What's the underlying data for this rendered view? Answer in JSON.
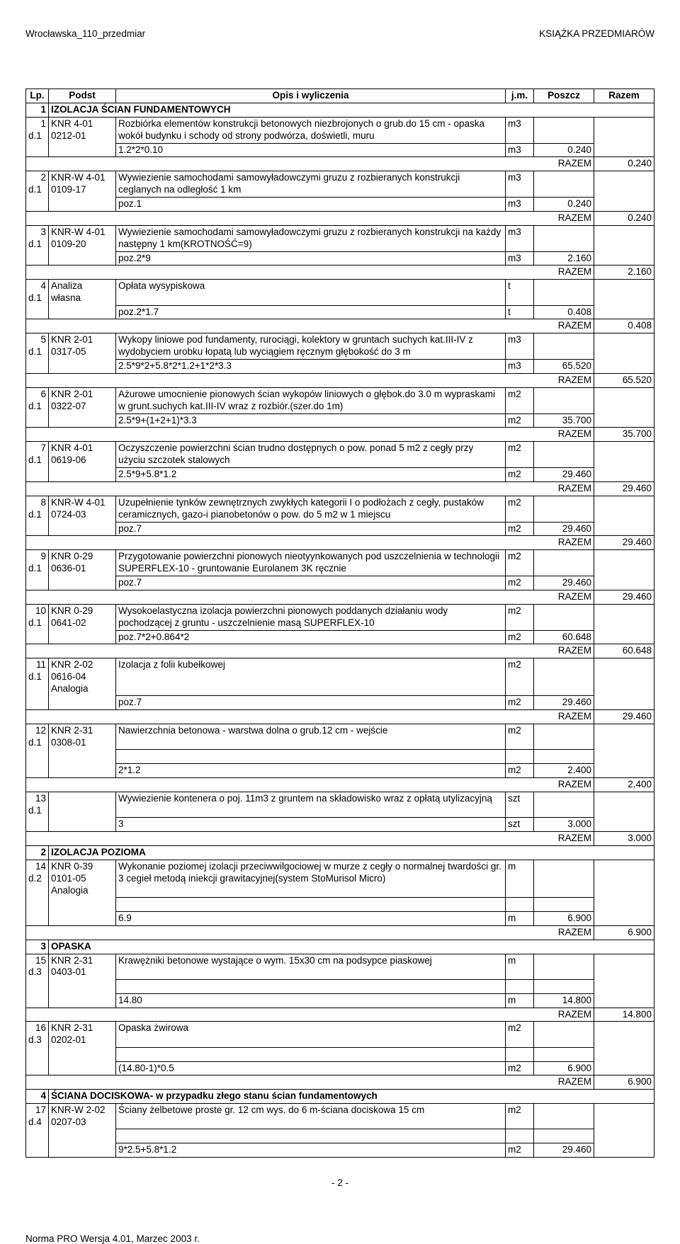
{
  "header": {
    "left": "Wrocławska_110_przedmiar",
    "right": "KSIĄŻKA PRZEDMIARÓW"
  },
  "columns": {
    "lp": "Lp.",
    "podst": "Podst",
    "opis": "Opis i wyliczenia",
    "jm": "j.m.",
    "poszcz": "Poszcz",
    "razem": "Razem"
  },
  "sections": [
    {
      "no": "1",
      "title": "IZOLACJA ŚCIAN FUNDAMENTOWYCH",
      "items": [
        {
          "lp": "1",
          "dz": "d.1",
          "code": "KNR 4-01 0212-01",
          "desc": "Rozbiórka elementów konstrukcji betonowych niezbrojonych o grub.do 15 cm - opaska wokół budynku i schody od strony podwórza, doświetli, muru",
          "jm": "m3",
          "lines": [
            {
              "expr": "1.2*2*0.10",
              "jm": "m3",
              "val": "0.240"
            }
          ],
          "razem": "0.240"
        },
        {
          "lp": "2",
          "dz": "d.1",
          "code": "KNR-W 4-01 0109-17",
          "desc": "Wywiezienie samochodami samowyładowczymi gruzu z rozbieranych konstrukcji ceglanych na odległość 1 km",
          "jm": "m3",
          "lines": [
            {
              "expr": "poz.1",
              "jm": "m3",
              "val": "0.240"
            }
          ],
          "razem": "0.240"
        },
        {
          "lp": "3",
          "dz": "d.1",
          "code": "KNR-W 4-01 0109-20",
          "desc": "Wywiezienie samochodami samowyładowczymi gruzu z rozbieranych konstrukcji na każdy następny 1 km(KROTNOŚĆ=9)",
          "jm": "m3",
          "lines": [
            {
              "expr": "poz.2*9",
              "jm": "m3",
              "val": "2.160"
            }
          ],
          "razem": "2.160"
        },
        {
          "lp": "4",
          "dz": "d.1",
          "code": "Analiza własna",
          "desc": "Opłata wysypiskowa",
          "jm": "t",
          "lines": [
            {
              "expr": "poz.2*1.7",
              "jm": "t",
              "val": "0.408"
            }
          ],
          "razem": "0.408"
        },
        {
          "lp": "5",
          "dz": "d.1",
          "code": "KNR 2-01 0317-05",
          "desc": "Wykopy liniowe pod fundamenty, rurociągi, kolektory w gruntach suchych kat.III-IV z wydobyciem urobku łopatą lub wyciągiem ręcznym głębokość do 3 m",
          "jm": "m3",
          "lines": [
            {
              "expr": "2.5*9*2+5.8*2*1.2+1*2*3.3",
              "jm": "m3",
              "val": "65.520"
            }
          ],
          "razem": "65.520"
        },
        {
          "lp": "6",
          "dz": "d.1",
          "code": "KNR 2-01 0322-07",
          "desc": "Ażurowe umocnienie pionowych ścian wykopów liniowych o głębok.do 3.0 m wypraskami w grunt.suchych kat.III-IV wraz z rozbiór.(szer.do 1m)",
          "jm": "m2",
          "lines": [
            {
              "expr": "2.5*9+(1+2+1)*3.3",
              "jm": "m2",
              "val": "35.700"
            }
          ],
          "razem": "35.700"
        },
        {
          "lp": "7",
          "dz": "d.1",
          "code": "KNR 4-01 0619-06",
          "desc": "Oczyszczenie powierzchni ścian trudno dostępnych o pow. ponad 5 m2 z cegły przy użyciu szczotek stalowych",
          "jm": "m2",
          "lines": [
            {
              "expr": "2.5*9+5.8*1.2",
              "jm": "m2",
              "val": "29.460"
            }
          ],
          "razem": "29.460"
        },
        {
          "lp": "8",
          "dz": "d.1",
          "code": "KNR-W 4-01 0724-03",
          "desc": "Uzupełnienie tynków zewnętrznych zwykłych kategorii I o podłożach z cegły, pustaków ceramicznych, gazo-i pianobetonów o pow. do 5 m2 w 1 miejscu",
          "jm": "m2",
          "lines": [
            {
              "expr": "poz.7",
              "jm": "m2",
              "val": "29.460"
            }
          ],
          "razem": "29.460"
        },
        {
          "lp": "9",
          "dz": "d.1",
          "code": "KNR 0-29 0636-01",
          "desc": "Przygotowanie powierzchni pionowych nieotyynkowanych pod uszczelnienia w technologii SUPERFLEX-10 - gruntowanie Eurolanem 3K ręcznie",
          "jm": "m2",
          "lines": [
            {
              "expr": "poz.7",
              "jm": "m2",
              "val": "29.460"
            }
          ],
          "razem": "29.460"
        },
        {
          "lp": "10",
          "dz": "d.1",
          "code": "KNR 0-29 0641-02",
          "desc": "Wysokoelastyczna izolacja powierzchni pionowych poddanych działaniu wody pochodzącej z gruntu - uszczelnienie masą SUPERFLEX-10",
          "jm": "m2",
          "lines": [
            {
              "expr": "poz.7*2+0.864*2",
              "jm": "m2",
              "val": "60.648"
            }
          ],
          "razem": "60.648"
        },
        {
          "lp": "11",
          "dz": "d.1",
          "code": "KNR 2-02 0616-04 Analogia",
          "desc": "Izolacja z folii kubełkowej",
          "jm": "m2",
          "lines": [
            {
              "expr": "poz.7",
              "jm": "m2",
              "val": "29.460"
            }
          ],
          "razem": "29.460"
        },
        {
          "lp": "12",
          "dz": "d.1",
          "code": "KNR 2-31 0308-01",
          "desc": "Nawierzchnia betonowa - warstwa dolna o grub.12 cm - wejście",
          "jm": "m2",
          "lines": [
            {
              "expr": "2*1.2",
              "jm": "m2",
              "val": "2.400"
            }
          ],
          "razem": "2.400",
          "emptyLineBefore": true
        },
        {
          "lp": "13",
          "dz": "d.1",
          "code": "",
          "desc": "Wywiezienie kontenera o poj. 11m3 z gruntem na składowisko wraz z opłatą utylizacyjną",
          "jm": "szt",
          "lines": [
            {
              "expr": "3",
              "jm": "szt",
              "val": "3.000"
            }
          ],
          "razem": "3.000"
        }
      ]
    },
    {
      "no": "2",
      "title": "IZOLACJA POZIOMA",
      "items": [
        {
          "lp": "14",
          "dz": "d.2",
          "code": "KNR 0-39 0101-05 Analogia",
          "desc": "Wykonanie poziomej izolacji przeciwwilgociowej w murze z cegły o normalnej twardości gr. 3 cegieł metodą iniekcji grawitacyjnej(system StoMurisol Micro)",
          "jm": "m",
          "lines": [
            {
              "expr": "6.9",
              "jm": "m",
              "val": "6.900"
            }
          ],
          "razem": "6.900",
          "emptyLineBefore": true
        }
      ]
    },
    {
      "no": "3",
      "title": "OPASKA",
      "items": [
        {
          "lp": "15",
          "dz": "d.3",
          "code": "KNR 2-31 0403-01",
          "desc": "Krawężniki betonowe wystające o wym. 15x30 cm na podsypce piaskowej",
          "jm": "m",
          "lines": [
            {
              "expr": "14.80",
              "jm": "m",
              "val": "14.800"
            }
          ],
          "razem": "14.800",
          "emptyLineBefore": true
        },
        {
          "lp": "16",
          "dz": "d.3",
          "code": "KNR 2-31 0202-01",
          "desc": "Opaska żwirowa",
          "jm": "m2",
          "lines": [
            {
              "expr": "(14.80-1)*0.5",
              "jm": "m2",
              "val": "6.900"
            }
          ],
          "razem": "6.900",
          "emptyLineBefore": true
        }
      ]
    },
    {
      "no": "4",
      "title": "ŚCIANA DOCISKOWA- w przypadku złego stanu ścian fundamentowych",
      "items": [
        {
          "lp": "17",
          "dz": "d.4",
          "code": "KNR-W 2-02 0207-03",
          "desc": "Ściany żelbetowe proste gr. 12 cm wys. do 6 m-ściana dociskowa 15 cm",
          "jm": "m2",
          "lines": [
            {
              "expr": "9*2.5+5.8*1.2",
              "jm": "m2",
              "val": "29.460"
            }
          ],
          "emptyLineBefore": true
        }
      ]
    }
  ],
  "razemLabel": "RAZEM",
  "pageNum": "- 2 -",
  "footer": "Norma PRO Wersja 4.01, Marzec 2003 r."
}
